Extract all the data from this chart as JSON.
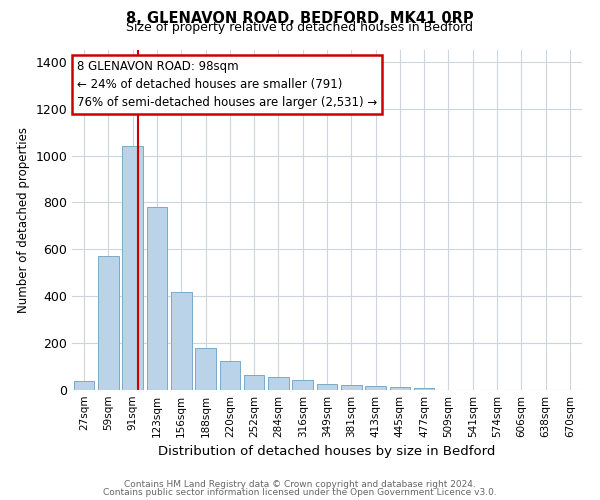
{
  "title": "8, GLENAVON ROAD, BEDFORD, MK41 0RP",
  "subtitle": "Size of property relative to detached houses in Bedford",
  "xlabel": "Distribution of detached houses by size in Bedford",
  "ylabel": "Number of detached properties",
  "footnote1": "Contains HM Land Registry data © Crown copyright and database right 2024.",
  "footnote2": "Contains public sector information licensed under the Open Government Licence v3.0.",
  "annotation_title": "8 GLENAVON ROAD: 98sqm",
  "annotation_line1": "← 24% of detached houses are smaller (791)",
  "annotation_line2": "76% of semi-detached houses are larger (2,531) →",
  "bar_color": "#bad3e8",
  "bar_edge_color": "#7aaac8",
  "vline_color": "#cc0000",
  "annotation_box_color": "#cc0000",
  "background_color": "#ffffff",
  "grid_color": "#ccd6e0",
  "categories": [
    "27sqm",
    "59sqm",
    "91sqm",
    "123sqm",
    "156sqm",
    "188sqm",
    "220sqm",
    "252sqm",
    "284sqm",
    "316sqm",
    "349sqm",
    "381sqm",
    "413sqm",
    "445sqm",
    "477sqm",
    "509sqm",
    "541sqm",
    "574sqm",
    "606sqm",
    "638sqm",
    "670sqm"
  ],
  "values": [
    40,
    570,
    1040,
    780,
    420,
    180,
    125,
    65,
    55,
    42,
    25,
    22,
    17,
    12,
    10,
    0,
    0,
    0,
    0,
    0,
    0
  ],
  "ylim": [
    0,
    1450
  ],
  "yticks": [
    0,
    200,
    400,
    600,
    800,
    1000,
    1200,
    1400
  ],
  "vline_x_index": 2.22,
  "figwidth": 6.0,
  "figheight": 5.0,
  "dpi": 100
}
